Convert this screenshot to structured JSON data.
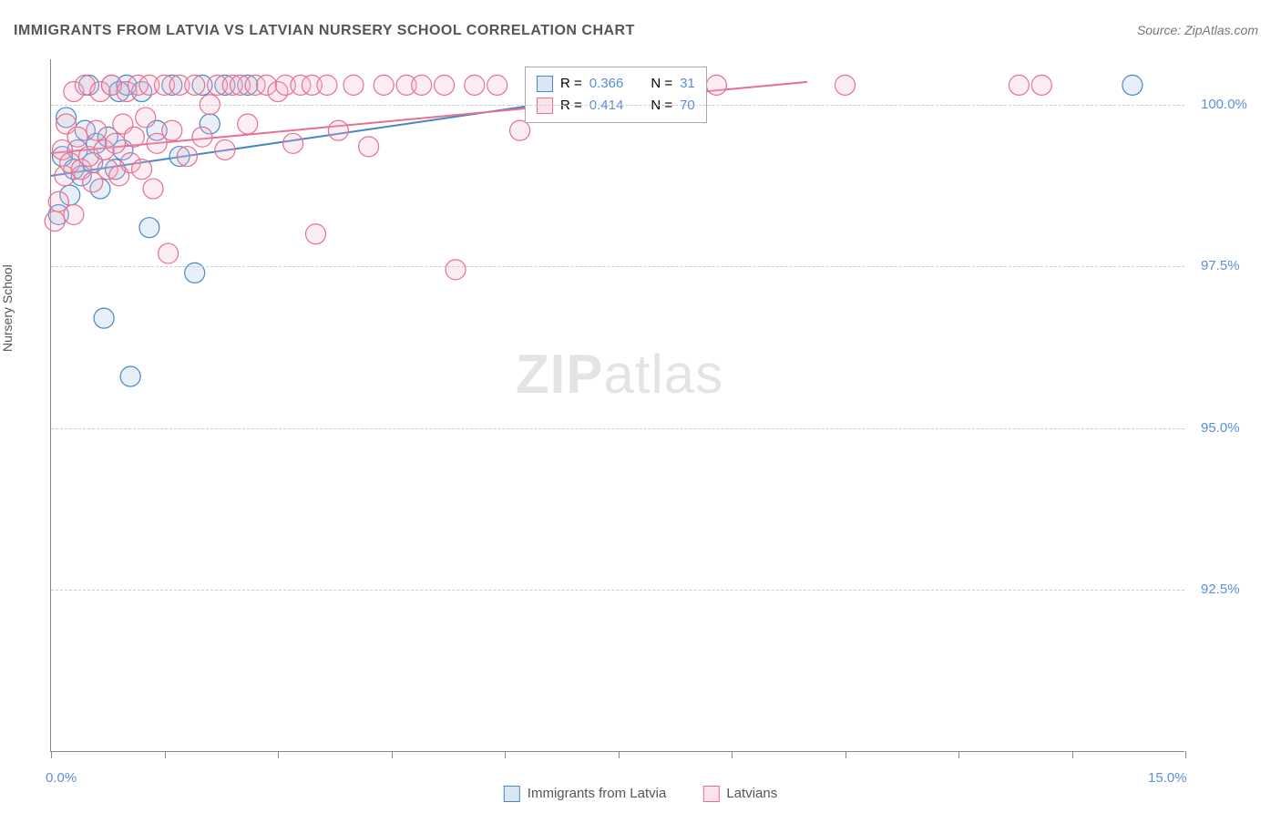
{
  "title": "IMMIGRANTS FROM LATVIA VS LATVIAN NURSERY SCHOOL CORRELATION CHART",
  "source": "Source: ZipAtlas.com",
  "y_axis_label": "Nursery School",
  "watermark": {
    "bold": "ZIP",
    "light": "atlas"
  },
  "chart": {
    "type": "scatter",
    "xlim": [
      0.0,
      15.0
    ],
    "ylim": [
      90.0,
      100.7
    ],
    "x_ticks": [
      0.0,
      1.5,
      3.0,
      4.5,
      6.0,
      7.5,
      9.0,
      10.5,
      12.0,
      13.5,
      15.0
    ],
    "x_tick_labels": {
      "0": "0.0%",
      "15": "15.0%"
    },
    "y_ticks": [
      92.5,
      95.0,
      97.5,
      100.0
    ],
    "y_tick_labels": [
      "92.5%",
      "95.0%",
      "97.5%",
      "100.0%"
    ],
    "background_color": "#ffffff",
    "grid_color": "#cccccc",
    "axis_color": "#888888",
    "tick_label_color": "#5b8fd6",
    "marker_radius": 11,
    "marker_stroke_width": 1.2,
    "marker_fill_opacity": 0.25,
    "line_width": 2,
    "series": [
      {
        "name": "Immigrants from Latvia",
        "color_stroke": "#4a86c5",
        "color_fill": "#9fc3e7",
        "R": "0.366",
        "N": "31",
        "trend": {
          "x1": 0.0,
          "y1": 98.9,
          "x2": 8.5,
          "y2": 100.35
        },
        "points": [
          [
            0.1,
            98.3
          ],
          [
            0.15,
            99.2
          ],
          [
            0.2,
            99.8
          ],
          [
            0.25,
            98.6
          ],
          [
            0.3,
            99.0
          ],
          [
            0.35,
            99.3
          ],
          [
            0.4,
            98.9
          ],
          [
            0.45,
            99.6
          ],
          [
            0.5,
            100.3
          ],
          [
            0.55,
            99.1
          ],
          [
            0.6,
            99.4
          ],
          [
            0.65,
            98.7
          ],
          [
            0.7,
            96.7
          ],
          [
            0.75,
            99.5
          ],
          [
            0.8,
            100.3
          ],
          [
            0.85,
            99.0
          ],
          [
            0.9,
            100.2
          ],
          [
            0.95,
            99.3
          ],
          [
            1.0,
            100.3
          ],
          [
            1.05,
            95.8
          ],
          [
            1.2,
            100.2
          ],
          [
            1.3,
            98.1
          ],
          [
            1.4,
            99.6
          ],
          [
            1.6,
            100.3
          ],
          [
            1.7,
            99.2
          ],
          [
            1.9,
            97.4
          ],
          [
            2.0,
            100.3
          ],
          [
            2.1,
            99.7
          ],
          [
            2.3,
            100.3
          ],
          [
            2.6,
            100.3
          ],
          [
            14.3,
            100.3
          ]
        ]
      },
      {
        "name": "Latvians",
        "color_stroke": "#e76f91",
        "color_fill": "#f4b9ca",
        "R": "0.414",
        "N": "70",
        "trend": {
          "x1": 0.0,
          "y1": 99.25,
          "x2": 10.0,
          "y2": 100.35
        },
        "points": [
          [
            0.05,
            98.2
          ],
          [
            0.1,
            98.5
          ],
          [
            0.15,
            99.3
          ],
          [
            0.18,
            98.9
          ],
          [
            0.2,
            99.7
          ],
          [
            0.25,
            99.1
          ],
          [
            0.3,
            100.2
          ],
          [
            0.3,
            98.3
          ],
          [
            0.35,
            99.5
          ],
          [
            0.4,
            99.0
          ],
          [
            0.45,
            100.3
          ],
          [
            0.5,
            99.2
          ],
          [
            0.55,
            98.8
          ],
          [
            0.6,
            99.6
          ],
          [
            0.65,
            100.2
          ],
          [
            0.7,
            99.3
          ],
          [
            0.75,
            99.0
          ],
          [
            0.8,
            100.3
          ],
          [
            0.85,
            99.4
          ],
          [
            0.9,
            98.9
          ],
          [
            0.95,
            99.7
          ],
          [
            1.0,
            100.2
          ],
          [
            1.05,
            99.1
          ],
          [
            1.1,
            99.5
          ],
          [
            1.15,
            100.3
          ],
          [
            1.2,
            99.0
          ],
          [
            1.25,
            99.8
          ],
          [
            1.3,
            100.3
          ],
          [
            1.35,
            98.7
          ],
          [
            1.4,
            99.4
          ],
          [
            1.5,
            100.3
          ],
          [
            1.55,
            97.7
          ],
          [
            1.6,
            99.6
          ],
          [
            1.7,
            100.3
          ],
          [
            1.8,
            99.2
          ],
          [
            1.9,
            100.3
          ],
          [
            2.0,
            99.5
          ],
          [
            2.1,
            100.0
          ],
          [
            2.2,
            100.3
          ],
          [
            2.3,
            99.3
          ],
          [
            2.4,
            100.3
          ],
          [
            2.5,
            100.3
          ],
          [
            2.6,
            99.7
          ],
          [
            2.7,
            100.3
          ],
          [
            2.85,
            100.3
          ],
          [
            3.0,
            100.2
          ],
          [
            3.1,
            100.3
          ],
          [
            3.2,
            99.4
          ],
          [
            3.3,
            100.3
          ],
          [
            3.45,
            100.3
          ],
          [
            3.5,
            98.0
          ],
          [
            3.65,
            100.3
          ],
          [
            3.8,
            99.6
          ],
          [
            4.0,
            100.3
          ],
          [
            4.2,
            99.35
          ],
          [
            4.4,
            100.3
          ],
          [
            4.7,
            100.3
          ],
          [
            4.9,
            100.3
          ],
          [
            5.2,
            100.3
          ],
          [
            5.35,
            97.45
          ],
          [
            5.6,
            100.3
          ],
          [
            5.9,
            100.3
          ],
          [
            6.2,
            99.6
          ],
          [
            6.5,
            100.3
          ],
          [
            7.5,
            100.3
          ],
          [
            8.0,
            100.3
          ],
          [
            8.8,
            100.3
          ],
          [
            10.5,
            100.3
          ],
          [
            12.8,
            100.3
          ],
          [
            13.1,
            100.3
          ]
        ]
      }
    ]
  },
  "stats_box": {
    "rows": [
      {
        "swatch_stroke": "#4a86c5",
        "swatch_fill": "#9fc3e7",
        "r": "0.366",
        "n": "31"
      },
      {
        "swatch_stroke": "#e76f91",
        "swatch_fill": "#f4b9ca",
        "r": "0.414",
        "n": "70"
      }
    ]
  },
  "bottom_legend": [
    {
      "swatch_stroke": "#4a86c5",
      "swatch_fill": "#9fc3e7",
      "label": "Immigrants from Latvia"
    },
    {
      "swatch_stroke": "#e76f91",
      "swatch_fill": "#f4b9ca",
      "label": "Latvians"
    }
  ]
}
